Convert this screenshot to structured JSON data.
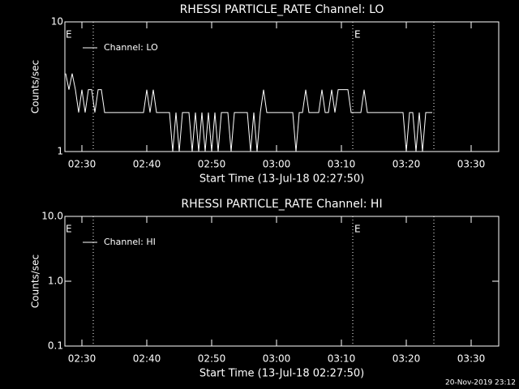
{
  "chart_data": [
    {
      "type": "line",
      "title": "RHESSI PARTICLE_RATE Channel: LO",
      "x_label": "Start Time (13-Jul-18 02:27:50)",
      "y_label": "Counts/sec",
      "log_y": true,
      "xlim": [
        147.375,
        214.25
      ],
      "ylim": [
        1,
        10
      ],
      "yticks": [
        1,
        10
      ],
      "xticks": [
        {
          "value": 150,
          "label": "02:30"
        },
        {
          "value": 160,
          "label": "02:40"
        },
        {
          "value": 170,
          "label": "02:50"
        },
        {
          "value": 180,
          "label": "03:00"
        },
        {
          "value": 190,
          "label": "03:10"
        },
        {
          "value": 200,
          "label": "03:20"
        },
        {
          "value": 210,
          "label": "03:30"
        }
      ],
      "vlines": [
        151.75,
        191.75,
        204.25
      ],
      "annotations": [
        {
          "x": 147.5,
          "text": "E"
        },
        {
          "x": 192,
          "text": "E"
        }
      ],
      "series": [
        {
          "name": "Channel: LO",
          "color": "#ffffff",
          "x": [
            147.5,
            148,
            148.5,
            149,
            149.5,
            150,
            150.5,
            151,
            151.5,
            152,
            152.5,
            153,
            153.5,
            154,
            154.5,
            155,
            155.5,
            156,
            156.5,
            157,
            157.5,
            158,
            158.5,
            159,
            159.5,
            160,
            160.5,
            161,
            161.5,
            162,
            162.5,
            163,
            163.5,
            164,
            164.5,
            165,
            165.5,
            166,
            166.5,
            167,
            167.5,
            168,
            168.5,
            169,
            169.5,
            170,
            170.5,
            171,
            171.5,
            172,
            172.5,
            173,
            173.5,
            174,
            174.5,
            175,
            175.5,
            176,
            176.5,
            177,
            177.5,
            178,
            178.5,
            179,
            179.5,
            180,
            180.5,
            181,
            181.5,
            182,
            182.5,
            183,
            183.5,
            184,
            184.5,
            185,
            185.5,
            186,
            186.5,
            187,
            187.5,
            188,
            188.5,
            189,
            189.5,
            190,
            190.5,
            191,
            191.5,
            192,
            192.5,
            193,
            193.5,
            194,
            194.5,
            195,
            195.5,
            196,
            196.5,
            197,
            197.5,
            198,
            198.5,
            199,
            199.5,
            200,
            200.5,
            201,
            201.5,
            202,
            202.5,
            203,
            203.5,
            204
          ],
          "values": [
            4,
            3,
            4,
            3,
            2,
            3,
            2,
            3,
            3,
            2,
            3,
            3,
            2,
            2,
            2,
            2,
            2,
            2,
            2,
            2,
            2,
            2,
            2,
            2,
            2,
            3,
            2,
            3,
            2,
            2,
            2,
            2,
            2,
            1,
            2,
            1,
            2,
            2,
            2,
            1,
            2,
            1,
            2,
            1,
            2,
            1,
            2,
            1,
            2,
            2,
            2,
            1,
            2,
            2,
            2,
            2,
            2,
            1,
            2,
            1,
            2,
            3,
            2,
            2,
            2,
            2,
            2,
            2,
            2,
            2,
            2,
            1,
            2,
            2,
            3,
            2,
            2,
            2,
            2,
            3,
            2,
            2,
            3,
            2,
            3,
            3,
            3,
            3,
            2,
            2,
            2,
            2,
            3,
            2,
            2,
            2,
            2,
            2,
            2,
            2,
            2,
            2,
            2,
            2,
            2,
            1,
            2,
            2,
            1,
            2,
            1,
            2,
            2,
            2
          ]
        }
      ]
    },
    {
      "type": "line",
      "title": "RHESSI PARTICLE_RATE Channel: HI",
      "x_label": "Start Time (13-Jul-18 02:27:50)",
      "y_label": "Counts/sec",
      "log_y": true,
      "xlim": [
        147.375,
        214.25
      ],
      "ylim": [
        0.1,
        10
      ],
      "yticks": [
        0.1,
        {
          "value": 1,
          "label": "1.0"
        },
        {
          "value": 10,
          "label": "10.0"
        }
      ],
      "xticks": [
        {
          "value": 150,
          "label": "02:30"
        },
        {
          "value": 160,
          "label": "02:40"
        },
        {
          "value": 170,
          "label": "02:50"
        },
        {
          "value": 180,
          "label": "03:00"
        },
        {
          "value": 190,
          "label": "03:10"
        },
        {
          "value": 200,
          "label": "03:20"
        },
        {
          "value": 210,
          "label": "03:30"
        }
      ],
      "vlines": [
        151.75,
        191.75,
        204.25
      ],
      "annotations": [
        {
          "x": 147.5,
          "text": "E"
        },
        {
          "x": 192,
          "text": "E"
        }
      ],
      "series": [
        {
          "name": "Channel: HI",
          "color": "#ffffff",
          "x": [],
          "values": []
        }
      ]
    }
  ],
  "footer": "20-Nov-2019 23:12"
}
